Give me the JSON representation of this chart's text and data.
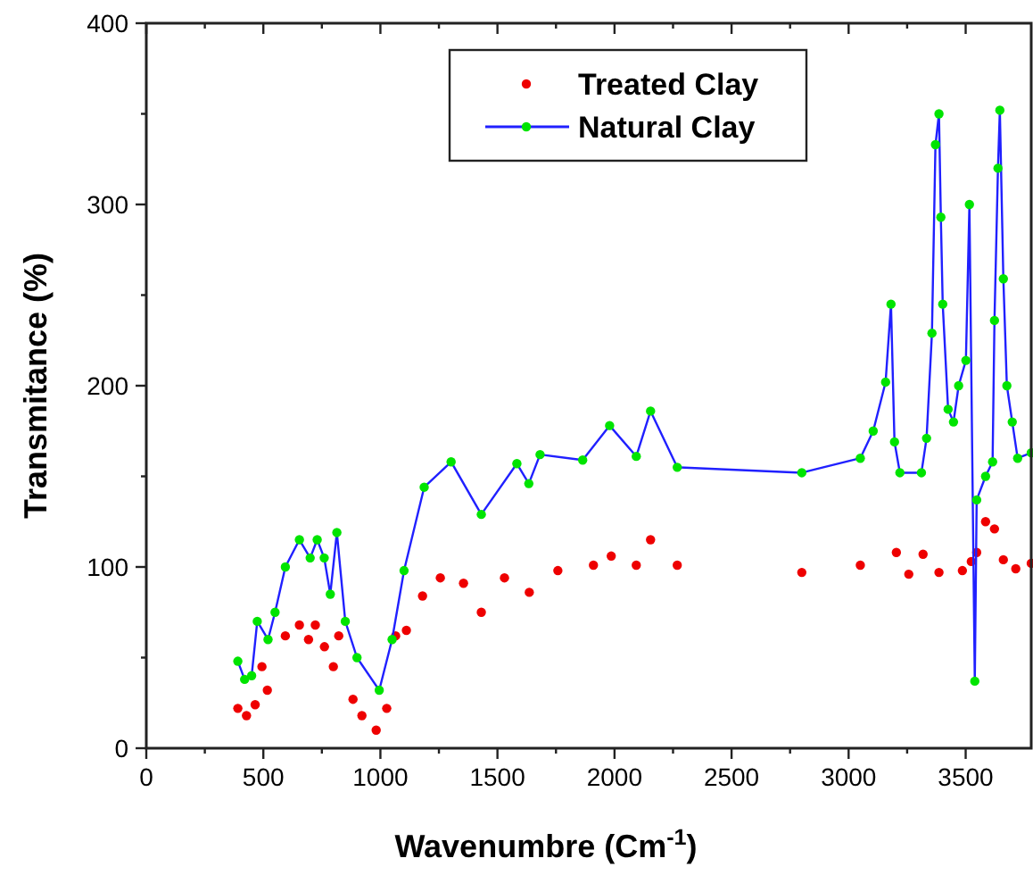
{
  "chart_data": {
    "type": "line",
    "xlabel": "Wavenumbre (Cm$^{-1}$)",
    "ylabel": "Transmitance (%)",
    "xlim": [
      0,
      3780
    ],
    "ylim": [
      0,
      400
    ],
    "xticks": [
      0,
      {
        "value": 250,
        "label": null
      },
      500,
      {
        "value": 750,
        "label": null
      },
      1000,
      {
        "value": 1250,
        "label": null
      },
      1500,
      {
        "value": 1750,
        "label": null
      },
      2000,
      {
        "value": 2250,
        "label": null
      },
      2500,
      {
        "value": 2750,
        "label": null
      },
      3000,
      {
        "value": 3250,
        "label": null
      },
      3500
    ],
    "yticks": [
      0,
      {
        "value": 50,
        "label": null
      },
      100,
      {
        "value": 150,
        "label": null
      },
      200,
      {
        "value": 250,
        "label": null
      },
      300,
      {
        "value": 350,
        "label": null
      },
      400
    ],
    "grid": false,
    "legend": "top",
    "marker": "circle",
    "series": [
      {
        "name": "Treated Clay",
        "type": "scatter",
        "color": "#ee0000",
        "x": [
          391,
          428,
          465,
          494,
          517,
          594,
          654,
          693,
          722,
          761,
          799,
          822,
          883,
          921,
          982,
          1027,
          1065,
          1111,
          1180,
          1256,
          1355,
          1431,
          1530,
          1636,
          1758,
          1910,
          1986,
          2093,
          2154,
          2268,
          2800,
          3050,
          3204,
          3257,
          3318,
          3386,
          3486,
          3524,
          3547,
          3585,
          3623,
          3661,
          3714,
          3780
        ],
        "values": [
          22,
          18,
          24,
          45,
          32,
          62,
          68,
          60,
          68,
          56,
          45,
          62,
          27,
          18,
          10,
          22,
          62,
          65,
          84,
          94,
          91,
          75,
          94,
          86,
          98,
          101,
          106,
          101,
          115,
          101,
          97,
          101,
          108,
          96,
          107,
          97,
          98,
          103,
          108,
          125,
          121,
          104,
          99,
          102
        ]
      },
      {
        "name": "Natural Clay",
        "color": "#2020ff",
        "x": [
          391,
          420,
          450,
          474,
          520,
          550,
          594,
          654,
          700,
          730,
          760,
          786,
          814,
          850,
          900,
          995,
          1050,
          1101,
          1187,
          1302,
          1431,
          1583,
          1634,
          1682,
          1864,
          1979,
          2093,
          2154,
          2268,
          2800,
          3050,
          3105,
          3158,
          3181,
          3196,
          3219,
          3311,
          3333,
          3356,
          3371,
          3386,
          3394,
          3402,
          3425,
          3448,
          3470,
          3501,
          3516,
          3539,
          3547,
          3585,
          3615,
          3623,
          3638,
          3646,
          3661,
          3676,
          3699,
          3722,
          3780
        ],
        "values": [
          48,
          38,
          40,
          70,
          60,
          75,
          100,
          115,
          105,
          115,
          105,
          85,
          119,
          70,
          50,
          32,
          60,
          98,
          144,
          158,
          129,
          157,
          146,
          162,
          159,
          178,
          161,
          186,
          155,
          152,
          160,
          175,
          202,
          245,
          169,
          152,
          152,
          171,
          229,
          333,
          350,
          293,
          245,
          187,
          180,
          200,
          214,
          300,
          37,
          137,
          150,
          158,
          236,
          320,
          352,
          259,
          200,
          180,
          160,
          163
        ],
        "colors": [
          "#00e400",
          "#00e400",
          "#00e400",
          "#00e400",
          "#00e400",
          "#00e400",
          "#00e400",
          "#00e400",
          "#00e400",
          "#00e400",
          "#00e400",
          "#00e400",
          "#00e400",
          "#00e400",
          "#00e400",
          "#00e400",
          "#00e400",
          "#00e400",
          "#00e400",
          "#00e400",
          "#00e400",
          "#00e400",
          "#00e400",
          "#00e400",
          "#00e400",
          "#00e400",
          "#00e400",
          "#00e400",
          "#00e400",
          "#00e400",
          "#00e400",
          "#00e400",
          "#00e400",
          "#00e400",
          "#00e400",
          "#00e400",
          "#00e400",
          "#00e400",
          "#00e400",
          "#00e400",
          "#00e400",
          "#00e400",
          "#00e400",
          "#00e400",
          "#00e400",
          "#00e400",
          "#00e400",
          "#00e400",
          "#00e400",
          "#00e400",
          "#00e400",
          "#00e400",
          "#00e400",
          "#00e400",
          "#00e400",
          "#00e400",
          "#00e400",
          "#00e400",
          "#00e400",
          "#00e400"
        ]
      }
    ]
  }
}
